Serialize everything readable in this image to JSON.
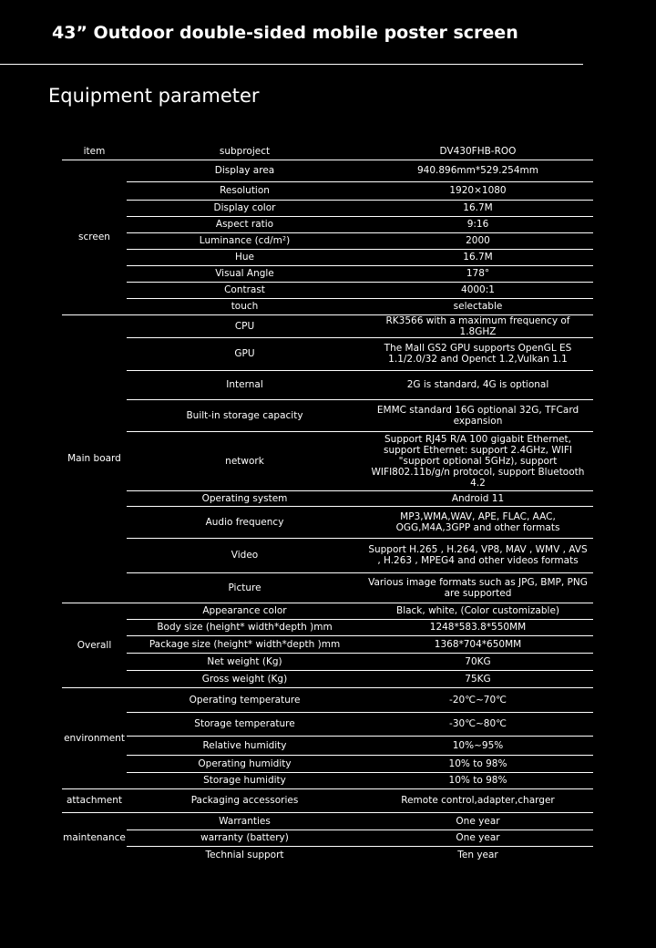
{
  "header": {
    "title": "43” Outdoor double-sided mobile poster screen"
  },
  "section_title": "Equipment parameter",
  "table": {
    "columns": [
      "item",
      "subproject",
      "DV430FHB-ROO"
    ],
    "groups": [
      {
        "item": "screen",
        "rows": [
          [
            "Display  area",
            "940.896mm*529.254mm"
          ],
          [
            "Resolution",
            "1920×1080"
          ],
          [
            "Display  color",
            "16.7M"
          ],
          [
            "Aspect ratio",
            "9:16"
          ],
          [
            "Luminance  (cd/m²)",
            "2000"
          ],
          [
            "Hue",
            "16.7M"
          ],
          [
            "Visual Angle",
            "178°"
          ],
          [
            "Contrast",
            "4000:1"
          ],
          [
            "touch",
            "selectable"
          ]
        ]
      },
      {
        "item": "Main board",
        "rows": [
          [
            "CPU",
            "RK3566 with a maximum frequency of 1.8GHZ"
          ],
          [
            "GPU",
            "The Mall GS2 GPU supports OpenGL ES 1.1/2.0/32 and Openct 1.2,Vulkan 1.1"
          ],
          [
            "Internal",
            "2G is standard, 4G is optional"
          ],
          [
            "Built-in storage capacity",
            "EMMC standard 16G optional 32G, TFCard expansion"
          ],
          [
            "network",
            "Support RJ45 R/A 100 gigabit Ethernet, support Ethernet: support 2.4GHz, WIFI \"support optional 5GHz), support WIFI802.11b/g/n protocol, support Bluetooth 4.2"
          ],
          [
            "Operating system",
            "Android 11"
          ],
          [
            "Audio frequency",
            "MP3,WMA,WAV, APE, FLAC, AAC, OGG,M4A,3GPP  and other  formats"
          ],
          [
            "Video",
            "Support H.265 ,  H.264,  VP8, MAV , WMV , AVS , H.263 , MPEG4  and other videos formats"
          ],
          [
            "Picture",
            "Various image formats such as JPG, BMP, PNG are supported"
          ]
        ]
      },
      {
        "item": "Overall",
        "rows": [
          [
            "Appearance  color",
            "Black, white,  (Color customizable)"
          ],
          [
            "Body size (height* width*depth )mm",
            "1248*583.8*550MM"
          ],
          [
            "Package size (height* width*depth )mm",
            "1368*704*650MM"
          ],
          [
            "Net weight (Kg)",
            "70KG"
          ],
          [
            "Gross weight (Kg)",
            "75KG"
          ]
        ]
      },
      {
        "item": "environment",
        "rows": [
          [
            "Operating temperature",
            "-20℃~70℃"
          ],
          [
            "Storage temperature",
            "-30℃~80℃"
          ],
          [
            "Relative humidity",
            "10%~95%"
          ],
          [
            "Operating humidity",
            "10% to 98%"
          ],
          [
            "Storage humidity",
            "10% to 98%"
          ]
        ]
      },
      {
        "item": "attachment",
        "rows": [
          [
            "Packaging accessories",
            "Remote  control,adapter,charger"
          ]
        ]
      },
      {
        "item": "maintenance",
        "rows": [
          [
            "Warranties",
            "One  year"
          ],
          [
            "warranty  (battery)",
            "One  year"
          ],
          [
            "Technial support",
            "Ten  year"
          ]
        ]
      }
    ]
  }
}
